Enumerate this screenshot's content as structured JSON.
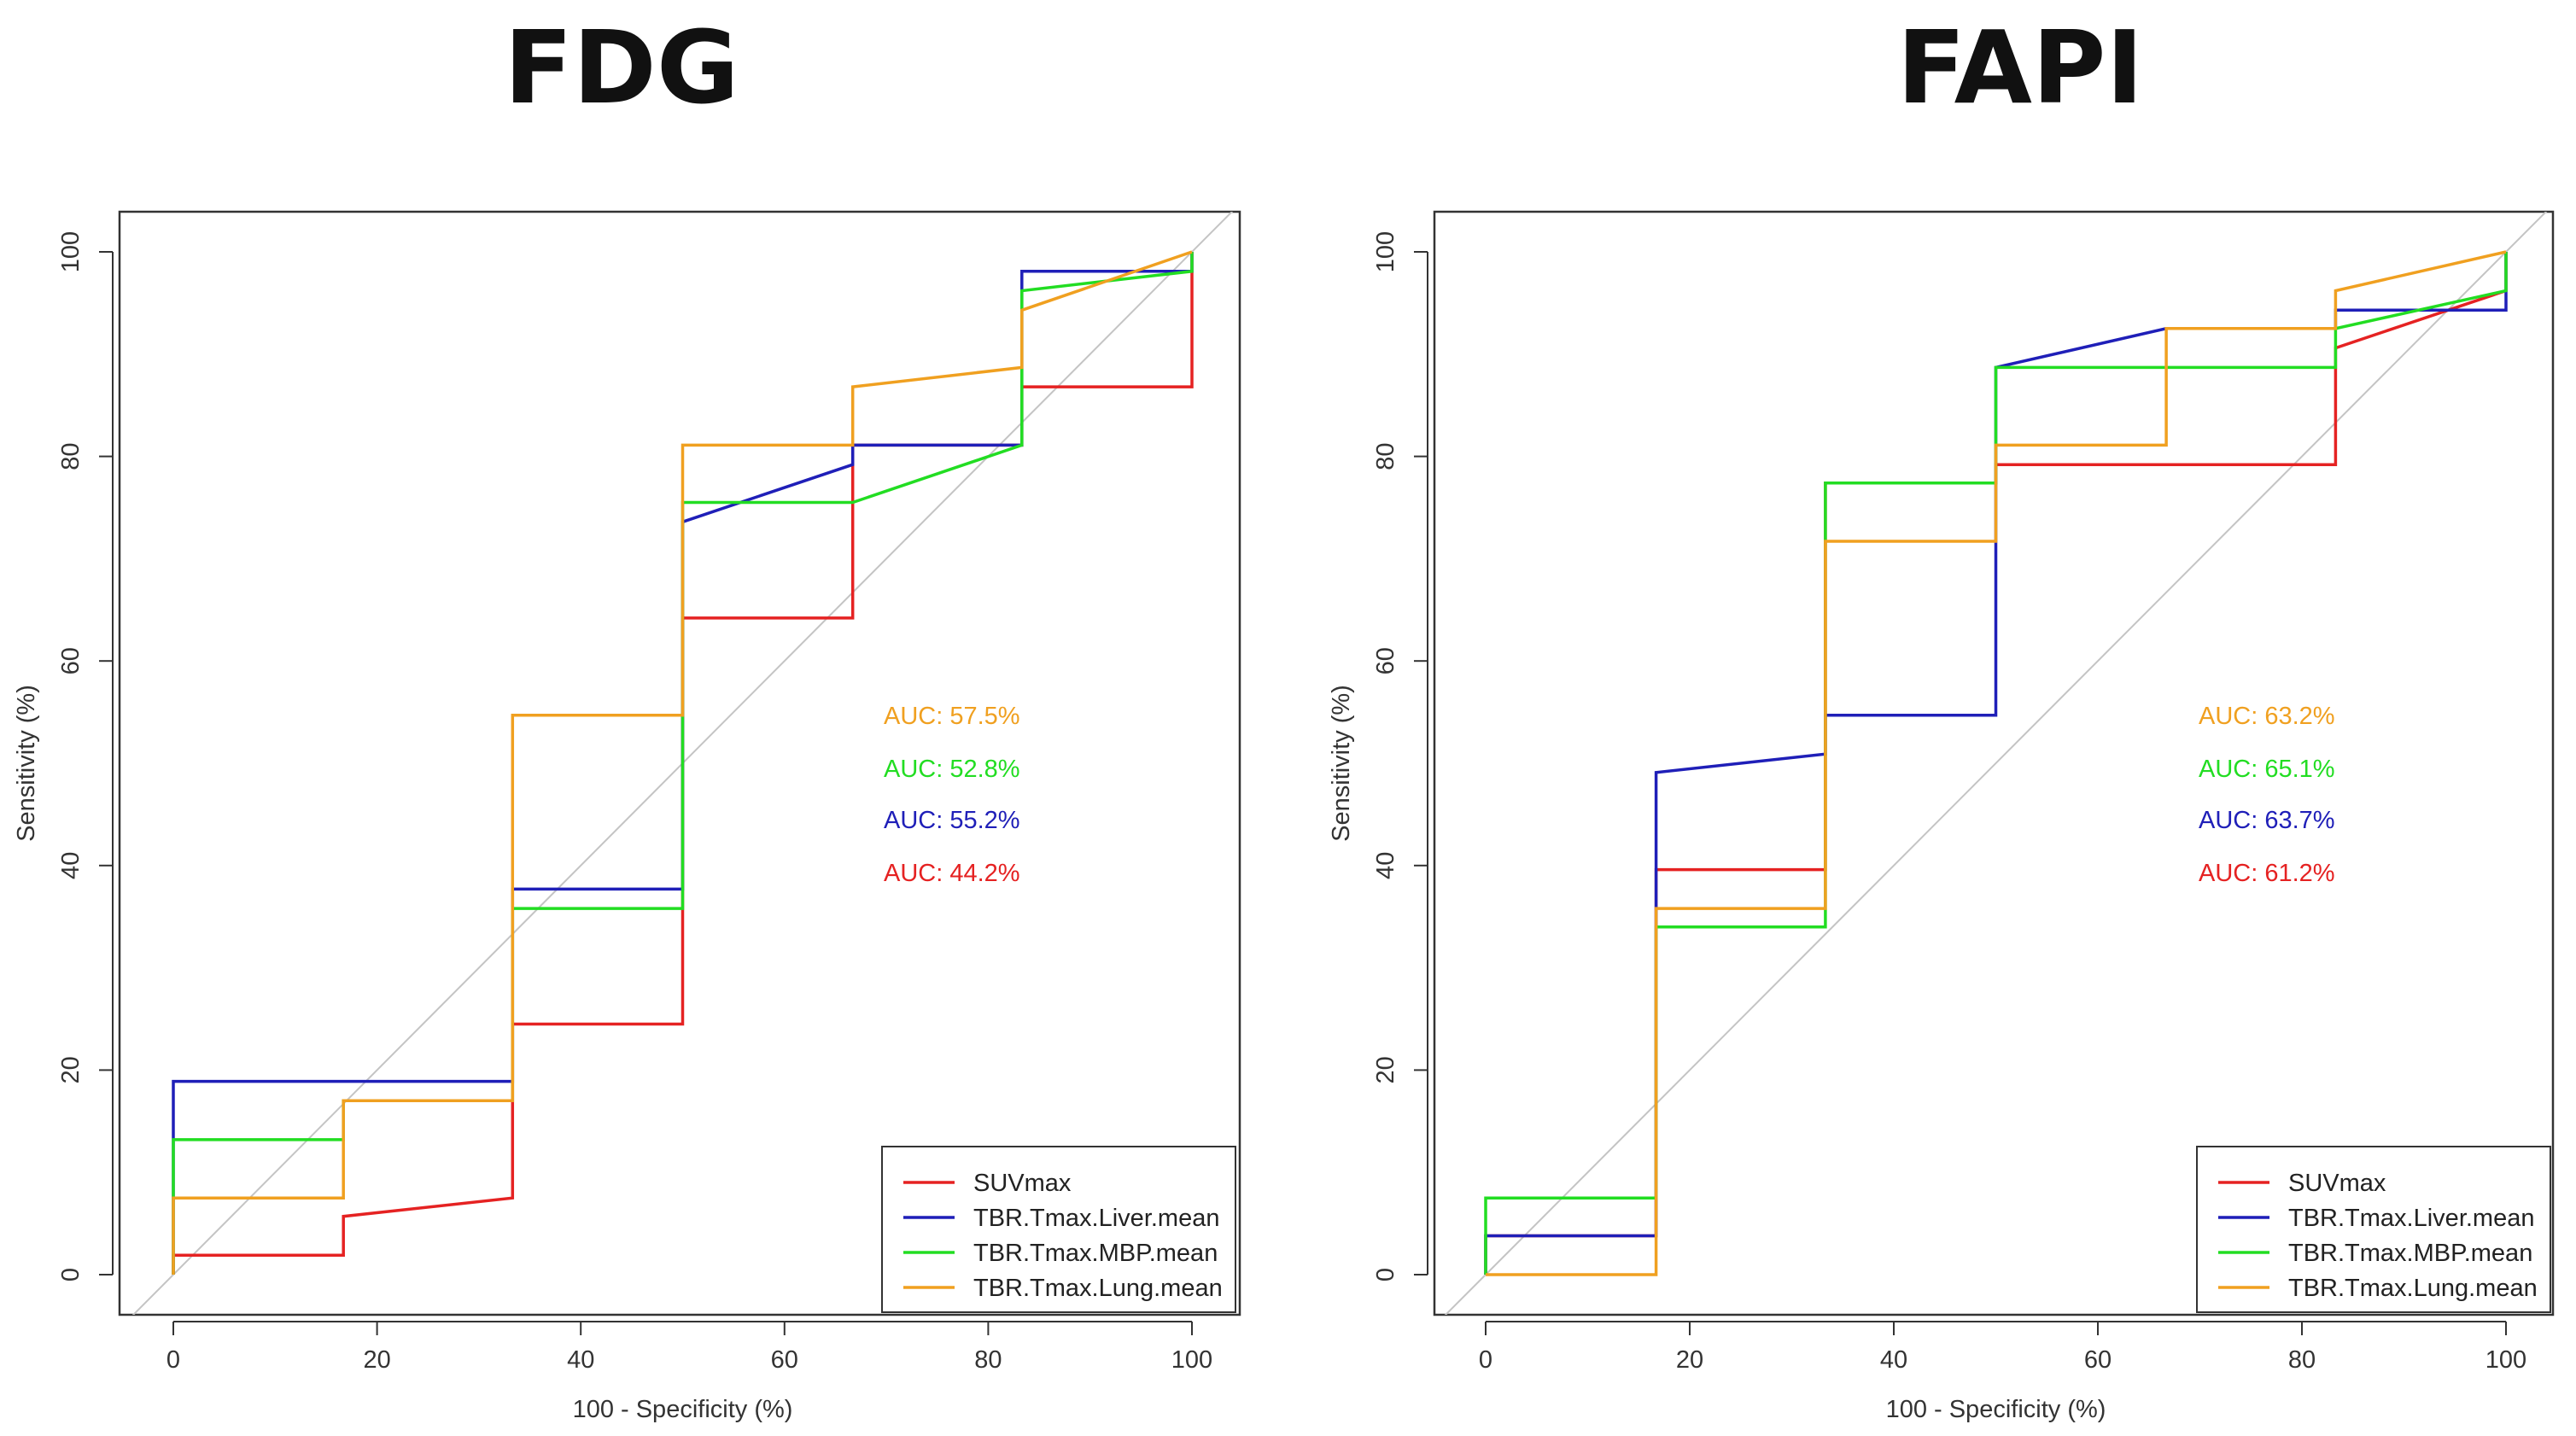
{
  "colors": {
    "SUVmax": "#e52222",
    "TBR.Tmax.Liver.mean": "#1f1fb8",
    "TBR.Tmax.MBP.mean": "#22dd22",
    "TBR.Tmax.Lung.mean": "#f0a020",
    "diagonal": "#c4c4c4",
    "axis": "#333333"
  },
  "chart_data": [
    {
      "type": "line",
      "title": "FDG",
      "xlabel": "100 - Specificity (%)",
      "ylabel": "Sensitivity (%)",
      "xlim": [
        0,
        100
      ],
      "ylim": [
        0,
        100
      ],
      "xticks": [
        "0",
        "20",
        "40",
        "60",
        "80",
        "100"
      ],
      "yticks": [
        "0",
        "20",
        "40",
        "60",
        "80",
        "100"
      ],
      "legend": [
        "SUVmax",
        "TBR.Tmax.Liver.mean",
        "TBR.Tmax.MBP.mean",
        "TBR.Tmax.Lung.mean"
      ],
      "legend_position": "bottom-right",
      "auc_labels": [
        {
          "series": "TBR.Tmax.Lung.mean",
          "text": "AUC: 57.5%"
        },
        {
          "series": "TBR.Tmax.MBP.mean",
          "text": "AUC: 52.8%"
        },
        {
          "series": "TBR.Tmax.Liver.mean",
          "text": "AUC: 55.2%"
        },
        {
          "series": "SUVmax",
          "text": "AUC: 44.2%"
        }
      ],
      "series": [
        {
          "name": "SUVmax",
          "points": [
            [
              0,
              0
            ],
            [
              0,
              1.9
            ],
            [
              16.7,
              1.9
            ],
            [
              16.7,
              5.7
            ],
            [
              33.3,
              7.5
            ],
            [
              33.3,
              24.5
            ],
            [
              50,
              24.5
            ],
            [
              50,
              64.2
            ],
            [
              66.7,
              64.2
            ],
            [
              66.7,
              81.1
            ],
            [
              83.3,
              81.1
            ],
            [
              83.3,
              86.8
            ],
            [
              100,
              86.8
            ],
            [
              100,
              100
            ]
          ]
        },
        {
          "name": "TBR.Tmax.Liver.mean",
          "points": [
            [
              0,
              0
            ],
            [
              0,
              18.9
            ],
            [
              33.3,
              18.9
            ],
            [
              33.3,
              37.7
            ],
            [
              50,
              37.7
            ],
            [
              50,
              73.6
            ],
            [
              66.7,
              79.2
            ],
            [
              66.7,
              81.1
            ],
            [
              83.3,
              81.1
            ],
            [
              83.3,
              98.1
            ],
            [
              100,
              98.1
            ],
            [
              100,
              100
            ]
          ]
        },
        {
          "name": "TBR.Tmax.MBP.mean",
          "points": [
            [
              0,
              0
            ],
            [
              0,
              13.2
            ],
            [
              16.7,
              13.2
            ],
            [
              16.7,
              17.0
            ],
            [
              33.3,
              17.0
            ],
            [
              33.3,
              35.8
            ],
            [
              50,
              35.8
            ],
            [
              50,
              75.5
            ],
            [
              66.7,
              75.5
            ],
            [
              83.3,
              81.1
            ],
            [
              83.3,
              96.2
            ],
            [
              100,
              98.1
            ],
            [
              100,
              100
            ]
          ]
        },
        {
          "name": "TBR.Tmax.Lung.mean",
          "points": [
            [
              0,
              0
            ],
            [
              0,
              7.5
            ],
            [
              16.7,
              7.5
            ],
            [
              16.7,
              17.0
            ],
            [
              33.3,
              17.0
            ],
            [
              33.3,
              54.7
            ],
            [
              50,
              54.7
            ],
            [
              50,
              81.1
            ],
            [
              66.7,
              81.1
            ],
            [
              66.7,
              86.8
            ],
            [
              83.3,
              88.7
            ],
            [
              83.3,
              94.3
            ],
            [
              100,
              100
            ]
          ]
        }
      ]
    },
    {
      "type": "line",
      "title": "FAPI",
      "xlabel": "100 - Specificity (%)",
      "ylabel": "Sensitivity (%)",
      "xlim": [
        0,
        100
      ],
      "ylim": [
        0,
        100
      ],
      "xticks": [
        "0",
        "20",
        "40",
        "60",
        "80",
        "100"
      ],
      "yticks": [
        "0",
        "20",
        "40",
        "60",
        "80",
        "100"
      ],
      "legend": [
        "SUVmax",
        "TBR.Tmax.Liver.mean",
        "TBR.Tmax.MBP.mean",
        "TBR.Tmax.Lung.mean"
      ],
      "legend_position": "bottom-right",
      "auc_labels": [
        {
          "series": "TBR.Tmax.Lung.mean",
          "text": "AUC: 63.2%"
        },
        {
          "series": "TBR.Tmax.MBP.mean",
          "text": "AUC: 65.1%"
        },
        {
          "series": "TBR.Tmax.Liver.mean",
          "text": "AUC: 63.7%"
        },
        {
          "series": "SUVmax",
          "text": "AUC: 61.2%"
        }
      ],
      "series": [
        {
          "name": "SUVmax",
          "points": [
            [
              0,
              0
            ],
            [
              0,
              3.8
            ],
            [
              16.7,
              3.8
            ],
            [
              16.7,
              39.6
            ],
            [
              33.3,
              39.6
            ],
            [
              33.3,
              77.4
            ],
            [
              50,
              77.4
            ],
            [
              50,
              79.2
            ],
            [
              83.3,
              79.2
            ],
            [
              83.3,
              90.6
            ],
            [
              100,
              96.2
            ],
            [
              100,
              100
            ]
          ]
        },
        {
          "name": "TBR.Tmax.Liver.mean",
          "points": [
            [
              0,
              0
            ],
            [
              0,
              3.8
            ],
            [
              16.7,
              3.8
            ],
            [
              16.7,
              49.1
            ],
            [
              33.3,
              50.9
            ],
            [
              33.3,
              54.7
            ],
            [
              50,
              54.7
            ],
            [
              50,
              88.7
            ],
            [
              66.7,
              92.5
            ],
            [
              83.3,
              92.5
            ],
            [
              83.3,
              94.3
            ],
            [
              100,
              94.3
            ],
            [
              100,
              100
            ]
          ]
        },
        {
          "name": "TBR.Tmax.MBP.mean",
          "points": [
            [
              0,
              0
            ],
            [
              0,
              7.5
            ],
            [
              16.7,
              7.5
            ],
            [
              16.7,
              34.0
            ],
            [
              33.3,
              34.0
            ],
            [
              33.3,
              77.4
            ],
            [
              50,
              77.4
            ],
            [
              50,
              88.7
            ],
            [
              83.3,
              88.7
            ],
            [
              83.3,
              92.5
            ],
            [
              100,
              96.2
            ],
            [
              100,
              100
            ]
          ]
        },
        {
          "name": "TBR.Tmax.Lung.mean",
          "points": [
            [
              0,
              0
            ],
            [
              16.7,
              0
            ],
            [
              16.7,
              35.8
            ],
            [
              33.3,
              35.8
            ],
            [
              33.3,
              71.7
            ],
            [
              50,
              71.7
            ],
            [
              50,
              81.1
            ],
            [
              66.7,
              81.1
            ],
            [
              66.7,
              92.5
            ],
            [
              83.3,
              92.5
            ],
            [
              83.3,
              96.2
            ],
            [
              100,
              100
            ]
          ]
        }
      ]
    }
  ]
}
